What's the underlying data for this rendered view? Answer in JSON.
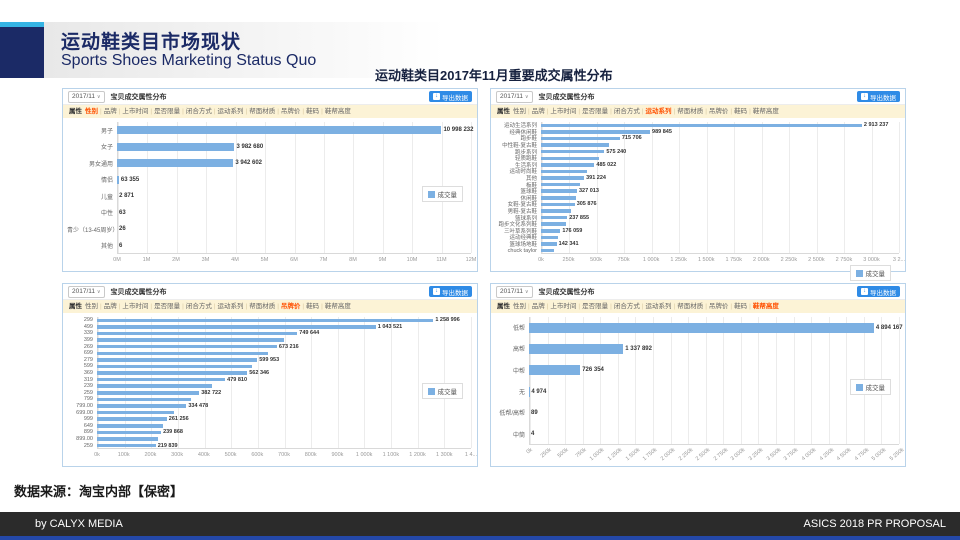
{
  "slide": {
    "title_cn": "运动鞋类目市场现状",
    "title_en": "Sports Shoes Marketing Status Quo",
    "section_label": "运动鞋类目2017年11月重要成交属性分布",
    "source_note": "数据来源：淘宝内部【保密】",
    "footer_left": "by CALYX MEDIA",
    "footer_right": "ASICS 2018 PR PROPOSAL"
  },
  "colors": {
    "accent_navy": "#1b2a66",
    "accent_cyan": "#35b4e4",
    "bar_blue": "#7cb0e2",
    "active_tab": "#ff5000",
    "button_blue": "#2f8be6",
    "footer_bar": "#2b2b2b",
    "footer_strip": "#2448a8"
  },
  "panel_common": {
    "period": "2017/11",
    "panel_title": "宝贝成交属性分布",
    "export_label": "导出数据",
    "export_icon": "↓",
    "attr_label": "属性",
    "tabs": [
      "性别",
      "品牌",
      "上市时间",
      "是否限量",
      "闭合方式",
      "运动系列",
      "帮面材质",
      "吊牌价",
      "鞋码",
      "鞋帮高度"
    ],
    "legend_label": "成交量"
  },
  "chart_data": [
    {
      "id": "gender",
      "type": "bar",
      "orientation": "horizontal",
      "title": "宝贝成交属性分布",
      "active_tab": "性别",
      "legend": [
        "成交量"
      ],
      "categories": [
        "男子",
        "女子",
        "男女通用",
        "情侣",
        "儿童",
        "中性",
        "青少（13-45周岁）",
        "其他"
      ],
      "values": [
        10998232,
        3982680,
        3942602,
        63355,
        2871,
        63,
        26,
        6
      ],
      "value_labels": [
        "10 998 232",
        "3 982 680",
        "3 942 602",
        "63 355",
        "2 871",
        "63",
        "26",
        "6"
      ],
      "xlim": [
        0,
        12000000
      ],
      "x_ticks": [
        "0M",
        "1M",
        "2M",
        "3M",
        "4M",
        "5M",
        "6M",
        "7M",
        "8M",
        "9M",
        "10M",
        "11M",
        "12M"
      ],
      "grid": true
    },
    {
      "id": "sport-series",
      "type": "bar",
      "orientation": "horizontal",
      "title": "宝贝成交属性分布",
      "active_tab": "运动系列",
      "legend": [
        "成交量"
      ],
      "categories": [
        "运动生活系列",
        "经典休闲鞋",
        "跑步鞋",
        "中性鞋-复古鞋",
        "跑步系列",
        "轻质跑鞋",
        "生活系列",
        "运动时尚鞋",
        "其他",
        "板鞋",
        "篮球鞋",
        "休闲鞋",
        "女鞋-复古鞋",
        "男鞋-复古鞋",
        "篮球系列",
        "跑步文化系列鞋",
        "三叶草系列鞋",
        "运动经典鞋",
        "篮球场地鞋",
        "chuck taylor"
      ],
      "values": [
        2913237,
        989845,
        715706,
        620000,
        575240,
        530000,
        485022,
        420000,
        391224,
        355000,
        327013,
        315000,
        305876,
        272000,
        237855,
        225000,
        176059,
        158000,
        142341,
        120000
      ],
      "value_labels": [
        "2 913 237",
        "989 845",
        "715 706",
        null,
        "575 240",
        null,
        "485 022",
        null,
        "391 224",
        null,
        "327 013",
        null,
        "305 876",
        null,
        "237 855",
        null,
        "176 059",
        null,
        "142 341",
        null
      ],
      "xlim": [
        0,
        3250000
      ],
      "x_ticks": [
        "0k",
        "250k",
        "500k",
        "750k",
        "1 000k",
        "1 250k",
        "1 500k",
        "1 750k",
        "2 000k",
        "2 250k",
        "2 500k",
        "2 750k",
        "3 000k",
        "3 2..."
      ],
      "grid": true
    },
    {
      "id": "tag-price",
      "type": "bar",
      "orientation": "horizontal",
      "title": "宝贝成交属性分布",
      "active_tab": "吊牌价",
      "legend": [
        "成交量"
      ],
      "categories": [
        "299",
        "499",
        "339",
        "399",
        "269",
        "699",
        "279",
        "599",
        "369",
        "319",
        "239",
        "259",
        "799",
        "799.00",
        "699.00",
        "999",
        "649",
        "899",
        "899.00",
        "259"
      ],
      "values": [
        1258996,
        1043521,
        749644,
        700000,
        673216,
        640000,
        599953,
        580000,
        562346,
        479810,
        430000,
        382722,
        350000,
        334478,
        290000,
        261256,
        246000,
        239868,
        228000,
        219839
      ],
      "value_labels": [
        "1 258 996",
        "1 043 521",
        "749 644",
        null,
        "673 216",
        null,
        "599 953",
        null,
        "562 346",
        "479 810",
        null,
        "382 722",
        null,
        "334 478",
        null,
        "261 256",
        null,
        "239 868",
        null,
        "219 839"
      ],
      "xlim": [
        0,
        1400000
      ],
      "x_ticks": [
        "0k",
        "100k",
        "200k",
        "300k",
        "400k",
        "500k",
        "600k",
        "700k",
        "800k",
        "900k",
        "1 000k",
        "1 100k",
        "1 200k",
        "1 300k",
        "1 4..."
      ],
      "grid": true
    },
    {
      "id": "heel-height",
      "type": "bar",
      "orientation": "horizontal",
      "title": "宝贝成交属性分布",
      "active_tab": "鞋帮高度",
      "legend": [
        "成交量"
      ],
      "categories": [
        "低帮",
        "高帮",
        "中帮",
        "无",
        "低帮/高帮",
        "中筒"
      ],
      "values": [
        4894167,
        1337892,
        726354,
        4974,
        89,
        4
      ],
      "value_labels": [
        "4 894 167",
        "1 337 892",
        "726 354",
        "4 974",
        "89",
        "4"
      ],
      "xlim": [
        0,
        5250000
      ],
      "x_ticks": [
        "0k",
        "250k",
        "500k",
        "750k",
        "1 000k",
        "1 250k",
        "1 500k",
        "1 750k",
        "2 000k",
        "2 250k",
        "2 500k",
        "2 750k",
        "3 000k",
        "3 250k",
        "3 500k",
        "3 750k",
        "4 000k",
        "4 250k",
        "4 500k",
        "4 750k",
        "5 000k",
        "5 250k"
      ],
      "x_tick_rotate": true,
      "grid": true
    }
  ]
}
